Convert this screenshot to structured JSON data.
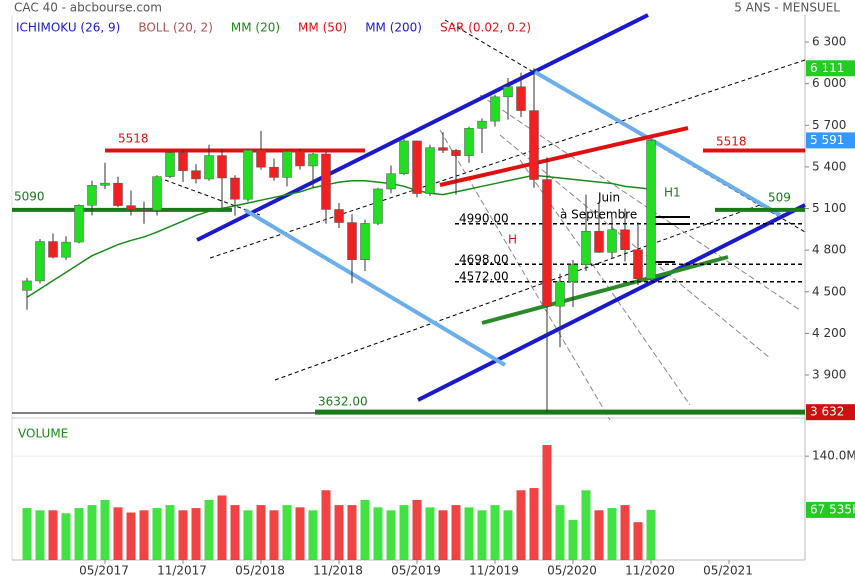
{
  "chart_data": [
    {
      "type": "candlestick",
      "title": "CAC 40 - abcbourse.com",
      "subtitle": "5 ANS - MENSUEL",
      "legend": [
        {
          "name": "ICHIMOKU (26, 9)",
          "color": "#1a1acc"
        },
        {
          "name": "BOLL (20, 2)",
          "color": "#b05050"
        },
        {
          "name": "MM (20)",
          "color": "#1a8a1a"
        },
        {
          "name": "MM (50)",
          "color": "#e01010"
        },
        {
          "name": "MM (200)",
          "color": "#1a1acc"
        },
        {
          "name": "SAR (0.02, 0.2)",
          "color": "#e01010"
        }
      ],
      "categories": [
        null,
        null,
        null,
        null,
        null,
        null,
        "05/2017",
        null,
        null,
        null,
        null,
        null,
        "11/2017",
        null,
        null,
        null,
        null,
        null,
        "05/2018",
        null,
        null,
        null,
        null,
        null,
        "11/2018",
        null,
        null,
        null,
        null,
        null,
        "05/2019",
        null,
        null,
        null,
        null,
        null,
        "11/2019",
        null,
        null,
        null,
        null,
        null,
        "05/2020",
        null,
        null,
        null,
        null,
        null,
        "11/2020",
        null,
        null,
        null,
        null,
        null,
        "05/2021"
      ],
      "open": [
        4510,
        4578,
        4862,
        4749,
        4858,
        5123,
        5267,
        5283,
        5121,
        5094,
        5086,
        5330,
        5503,
        5373,
        5313,
        5482,
        5320,
        5167,
        5521,
        5398,
        5324,
        5511,
        5407,
        5493,
        5093,
        4999,
        4731,
        4993,
        5241,
        5351,
        5587,
        5208,
        5539,
        5519,
        5481,
        5678,
        5730,
        5905,
        5978,
        5806,
        5309,
        4396,
        4572,
        4695,
        4936,
        4784,
        4947,
        4803,
        4594,
        null,
        null,
        null,
        null,
        null,
        null
      ],
      "high": [
        4600,
        4880,
        4920,
        4900,
        5130,
        5300,
        5430,
        5330,
        5230,
        5150,
        5340,
        5510,
        5520,
        5420,
        5560,
        5530,
        5340,
        5530,
        5660,
        5460,
        5520,
        5530,
        5500,
        5510,
        5140,
        5060,
        5020,
        5250,
        5410,
        5600,
        5590,
        5560,
        5650,
        5530,
        5690,
        5750,
        5920,
        6040,
        6080,
        6111,
        5470,
        4630,
        4730,
        5200,
        5150,
        5040,
        5100,
        5000,
        5600,
        null,
        null,
        null,
        null,
        null,
        null
      ],
      "low": [
        4370,
        4560,
        4740,
        4730,
        4850,
        5050,
        5240,
        5110,
        5050,
        4990,
        5050,
        5320,
        5290,
        5280,
        5300,
        5100,
        5050,
        5150,
        5380,
        5300,
        5260,
        5380,
        5250,
        4990,
        4960,
        4560,
        4650,
        4980,
        5210,
        5340,
        5180,
        5190,
        5500,
        5200,
        5430,
        5500,
        5690,
        5740,
        5760,
        5250,
        3632,
        4100,
        4390,
        4650,
        4780,
        4740,
        4720,
        4550,
        4560,
        null,
        null,
        null,
        null,
        null,
        null
      ],
      "close": [
        4578,
        4862,
        4749,
        4858,
        5123,
        5267,
        5283,
        5121,
        5094,
        5086,
        5330,
        5503,
        5373,
        5313,
        5482,
        5320,
        5167,
        5521,
        5398,
        5324,
        5511,
        5407,
        5493,
        5093,
        4999,
        4731,
        4993,
        5241,
        5351,
        5587,
        5208,
        5539,
        5519,
        5481,
        5678,
        5730,
        5905,
        5978,
        5806,
        5309,
        4396,
        4572,
        4695,
        4936,
        4784,
        4947,
        4803,
        4594,
        5591,
        null,
        null,
        null,
        null,
        null,
        null
      ],
      "up_color": "#22dd22",
      "down_color": "#ee2222",
      "ma20": [
        4460,
        4520,
        4580,
        4640,
        4700,
        4760,
        4800,
        4840,
        4870,
        4895,
        4930,
        4970,
        5010,
        5050,
        5080,
        5100,
        5120,
        5140,
        5160,
        5180,
        5200,
        5220,
        5250,
        5270,
        5290,
        5300,
        5300,
        5290,
        5280,
        5260,
        5230,
        5210,
        5200,
        5220,
        5240,
        5260,
        5280,
        5300,
        5320,
        5340,
        5330,
        5320,
        5310,
        5300,
        5290,
        5280,
        5260,
        5250,
        5240,
        null,
        null,
        null,
        null,
        null,
        null
      ],
      "ylim": [
        3626,
        6495
      ],
      "yticks": [
        {
          "value": 3900,
          "label": "3 900"
        },
        {
          "value": 4200,
          "label": "4 200"
        },
        {
          "value": 4500,
          "label": "4 500"
        },
        {
          "value": 4800,
          "label": "4 800"
        },
        {
          "value": 5100,
          "label": "5 100"
        },
        {
          "value": 5400,
          "label": "5 400"
        },
        {
          "value": 5700,
          "label": "5 700"
        },
        {
          "value": 6000,
          "label": "6 000"
        },
        {
          "value": 6300,
          "label": "6 300"
        }
      ],
      "levels": [
        {
          "value": 5518,
          "color": "#e01010"
        },
        {
          "value": 5090,
          "color": "#1a7a1a"
        },
        {
          "value": 3632,
          "label": "3632.00",
          "color": "#1a7a1a"
        },
        {
          "value": 4990,
          "label": "4990.00",
          "color": "#000000"
        },
        {
          "value": 4698,
          "label": "4698.00",
          "color": "#000000"
        },
        {
          "value": 4572,
          "label": "4572.00",
          "color": "#000000"
        }
      ],
      "markers": [
        {
          "value": 6111,
          "label": "6 111",
          "color": "#22cc22"
        },
        {
          "value": 5591,
          "label": "5 591",
          "color": "#3399ff"
        },
        {
          "value": 3632,
          "label": "3 632",
          "color": "#cc1111"
        }
      ],
      "annotations": [
        "H",
        "H1",
        "Juin",
        "à Septembre",
        "509"
      ]
    },
    {
      "type": "bar",
      "title": "VOLUME",
      "values": [
        70,
        67,
        67,
        63,
        70,
        74,
        81,
        71,
        64,
        67,
        70,
        74,
        67,
        70,
        81,
        87,
        74,
        67,
        74,
        67,
        74,
        71,
        67,
        94,
        74,
        74,
        81,
        71,
        67,
        74,
        81,
        71,
        67,
        74,
        71,
        67,
        74,
        67,
        94,
        97,
        155,
        74,
        54,
        94,
        67,
        70,
        74,
        51,
        67.535,
        null,
        null,
        null,
        null,
        null,
        null
      ],
      "ylim": [
        0,
        182
      ],
      "yticks": [
        {
          "value": 140,
          "label": "140.0M"
        }
      ],
      "marker": {
        "value": 67.535,
        "label": "67 535K",
        "color": "#22cc22"
      }
    }
  ]
}
